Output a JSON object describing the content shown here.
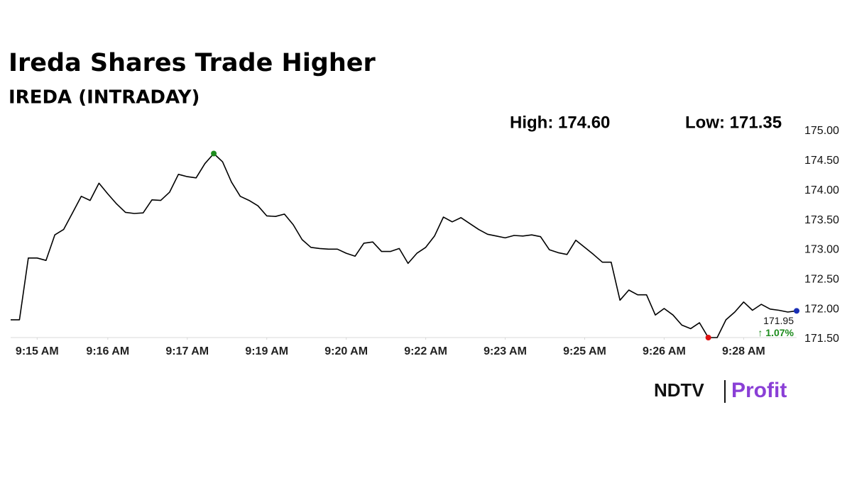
{
  "chart_data": {
    "type": "line",
    "title": "Ireda Shares Trade Higher",
    "subtitle": "IREDA (INTRADAY)",
    "high_label": "High: 174.60",
    "low_label": "Low: 171.35",
    "last_value_label": "171.95",
    "change_label": "↑ 1.07%",
    "categories": [
      null,
      null,
      null,
      "9:15 AM",
      null,
      null,
      null,
      null,
      null,
      null,
      null,
      "9:16 AM",
      null,
      null,
      null,
      null,
      null,
      null,
      null,
      null,
      "9:17 AM",
      null,
      null,
      null,
      null,
      null,
      null,
      null,
      null,
      "9:19 AM",
      null,
      null,
      null,
      null,
      null,
      null,
      null,
      null,
      "9:20 AM",
      null,
      null,
      null,
      null,
      null,
      null,
      null,
      null,
      "9:22 AM",
      null,
      null,
      null,
      null,
      null,
      null,
      null,
      null,
      "9:23 AM",
      null,
      null,
      null,
      null,
      null,
      null,
      null,
      null,
      "9:25 AM",
      null,
      null,
      null,
      null,
      null,
      null,
      null,
      null,
      "9:26 AM",
      null,
      null,
      null,
      null,
      null,
      null,
      null,
      null,
      "9:28 AM",
      null,
      null,
      null,
      null,
      null,
      null
    ],
    "values": [
      171.8,
      171.8,
      172.84,
      172.84,
      172.8,
      173.23,
      173.32,
      173.6,
      173.88,
      173.81,
      174.1,
      173.92,
      173.75,
      173.61,
      173.59,
      173.6,
      173.82,
      173.81,
      173.95,
      174.25,
      174.21,
      174.19,
      174.43,
      174.6,
      174.46,
      174.12,
      173.88,
      173.81,
      173.72,
      173.55,
      173.54,
      173.58,
      173.4,
      173.15,
      173.02,
      173.0,
      172.99,
      172.99,
      172.92,
      172.87,
      173.09,
      173.11,
      172.95,
      172.95,
      173.0,
      172.75,
      172.92,
      173.02,
      173.21,
      173.53,
      173.45,
      173.52,
      173.42,
      173.32,
      173.24,
      173.21,
      173.18,
      173.22,
      173.21,
      173.23,
      173.2,
      172.98,
      172.93,
      172.9,
      173.14,
      173.02,
      172.9,
      172.77,
      172.77,
      172.13,
      172.3,
      172.22,
      172.22,
      171.88,
      171.99,
      171.88,
      171.71,
      171.65,
      171.75,
      171.5,
      171.5,
      171.8,
      171.93,
      172.1,
      171.96,
      172.06,
      171.98,
      171.96,
      171.93,
      171.95
    ],
    "color": "#000000",
    "high_color": "#1e8c1e",
    "low_color": "#e01010",
    "last_color": "#1a2fb5",
    "change_color": "#1e8c1e",
    "ylim": [
      171.5,
      175
    ],
    "yticks": [
      {
        "value": 175,
        "label": "175.00"
      },
      {
        "value": 174.5,
        "label": "174.50"
      },
      {
        "value": 174,
        "label": "174.00"
      },
      {
        "value": 173.5,
        "label": "173.50"
      },
      {
        "value": 173,
        "label": "173.00"
      },
      {
        "value": 172.5,
        "label": "172.50"
      },
      {
        "value": 172,
        "label": "172.00"
      },
      {
        "value": 171.5,
        "label": "171.50"
      }
    ]
  },
  "brand": {
    "name": "NDTV",
    "product": "Profit"
  }
}
